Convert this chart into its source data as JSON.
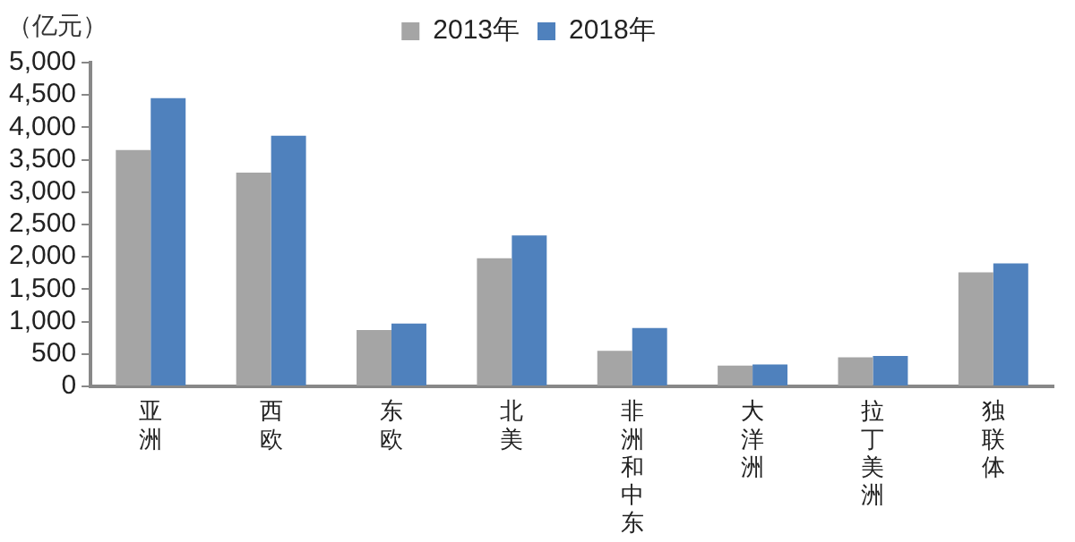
{
  "chart_data": {
    "type": "bar",
    "ylabel": "（亿元）",
    "categories": [
      "亚洲",
      "西欧",
      "东欧",
      "北美",
      "非洲和中东",
      "大洋洲",
      "拉丁美洲",
      "独联体"
    ],
    "series": [
      {
        "name": "2013年",
        "color": "#a5a5a5",
        "values": [
          3650,
          3300,
          870,
          1980,
          550,
          320,
          450,
          1760
        ]
      },
      {
        "name": "2018年",
        "color": "#4f81bd",
        "values": [
          4450,
          3870,
          970,
          2330,
          900,
          340,
          470,
          1900
        ]
      }
    ],
    "ylim": [
      0,
      5000
    ],
    "yticks": [
      {
        "value": 0,
        "label": "0"
      },
      {
        "value": 500,
        "label": "500"
      },
      {
        "value": 1000,
        "label": "1,000"
      },
      {
        "value": 1500,
        "label": "1,500"
      },
      {
        "value": 2000,
        "label": "2,000"
      },
      {
        "value": 2500,
        "label": "2,500"
      },
      {
        "value": 3000,
        "label": "3,000"
      },
      {
        "value": 3500,
        "label": "3,500"
      },
      {
        "value": 4000,
        "label": "4,000"
      },
      {
        "value": 4500,
        "label": "4,500"
      },
      {
        "value": 5000,
        "label": "5,000"
      }
    ],
    "grid": false,
    "legend": "top"
  }
}
